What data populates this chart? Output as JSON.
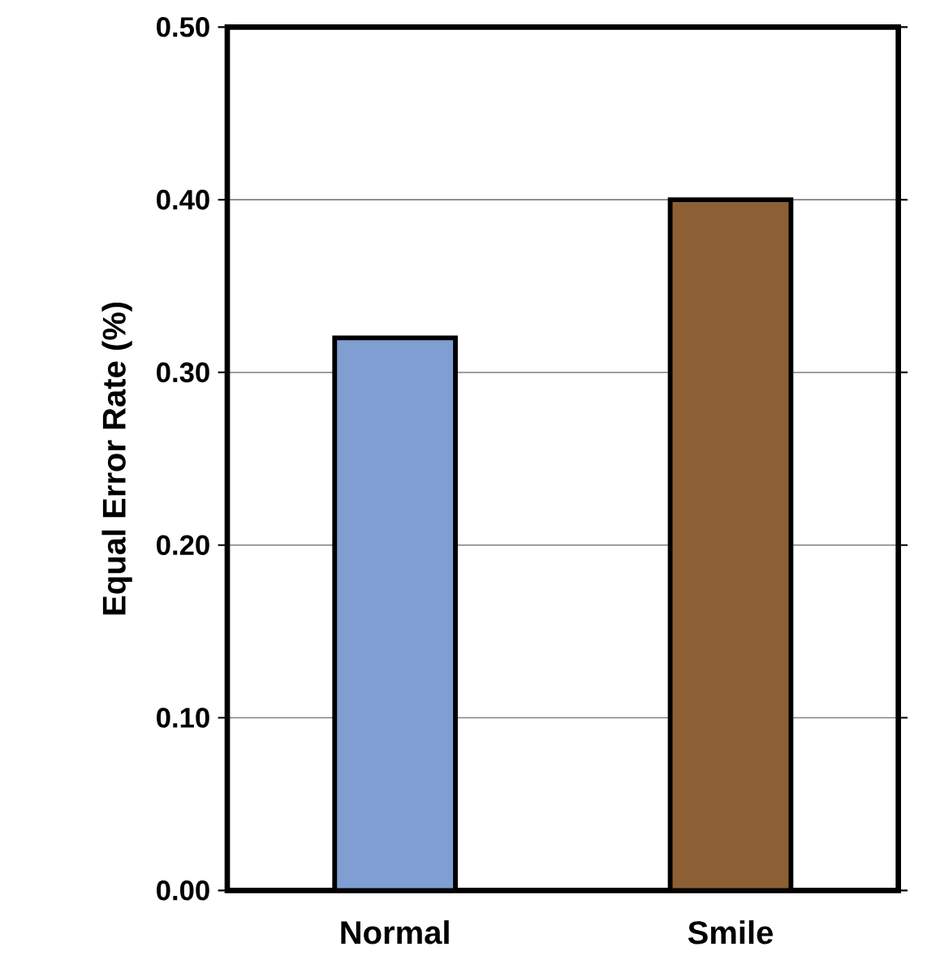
{
  "chart_data": {
    "type": "bar",
    "ylabel": "Equal Error Rate (%)",
    "categories": [
      "Normal",
      "Smile"
    ],
    "values": [
      0.32,
      0.4
    ],
    "colors": [
      "#7f9fd3",
      "#8c6034"
    ],
    "ylim": [
      0,
      0.5
    ],
    "yticks": [
      {
        "value": 0,
        "label": "0.00"
      },
      {
        "value": 0.1,
        "label": "0.10"
      },
      {
        "value": 0.2,
        "label": "0.20"
      },
      {
        "value": 0.3,
        "label": "0.30"
      },
      {
        "value": 0.4,
        "label": "0.40"
      },
      {
        "value": 0.5,
        "label": "0.50"
      }
    ],
    "grid": "y"
  }
}
